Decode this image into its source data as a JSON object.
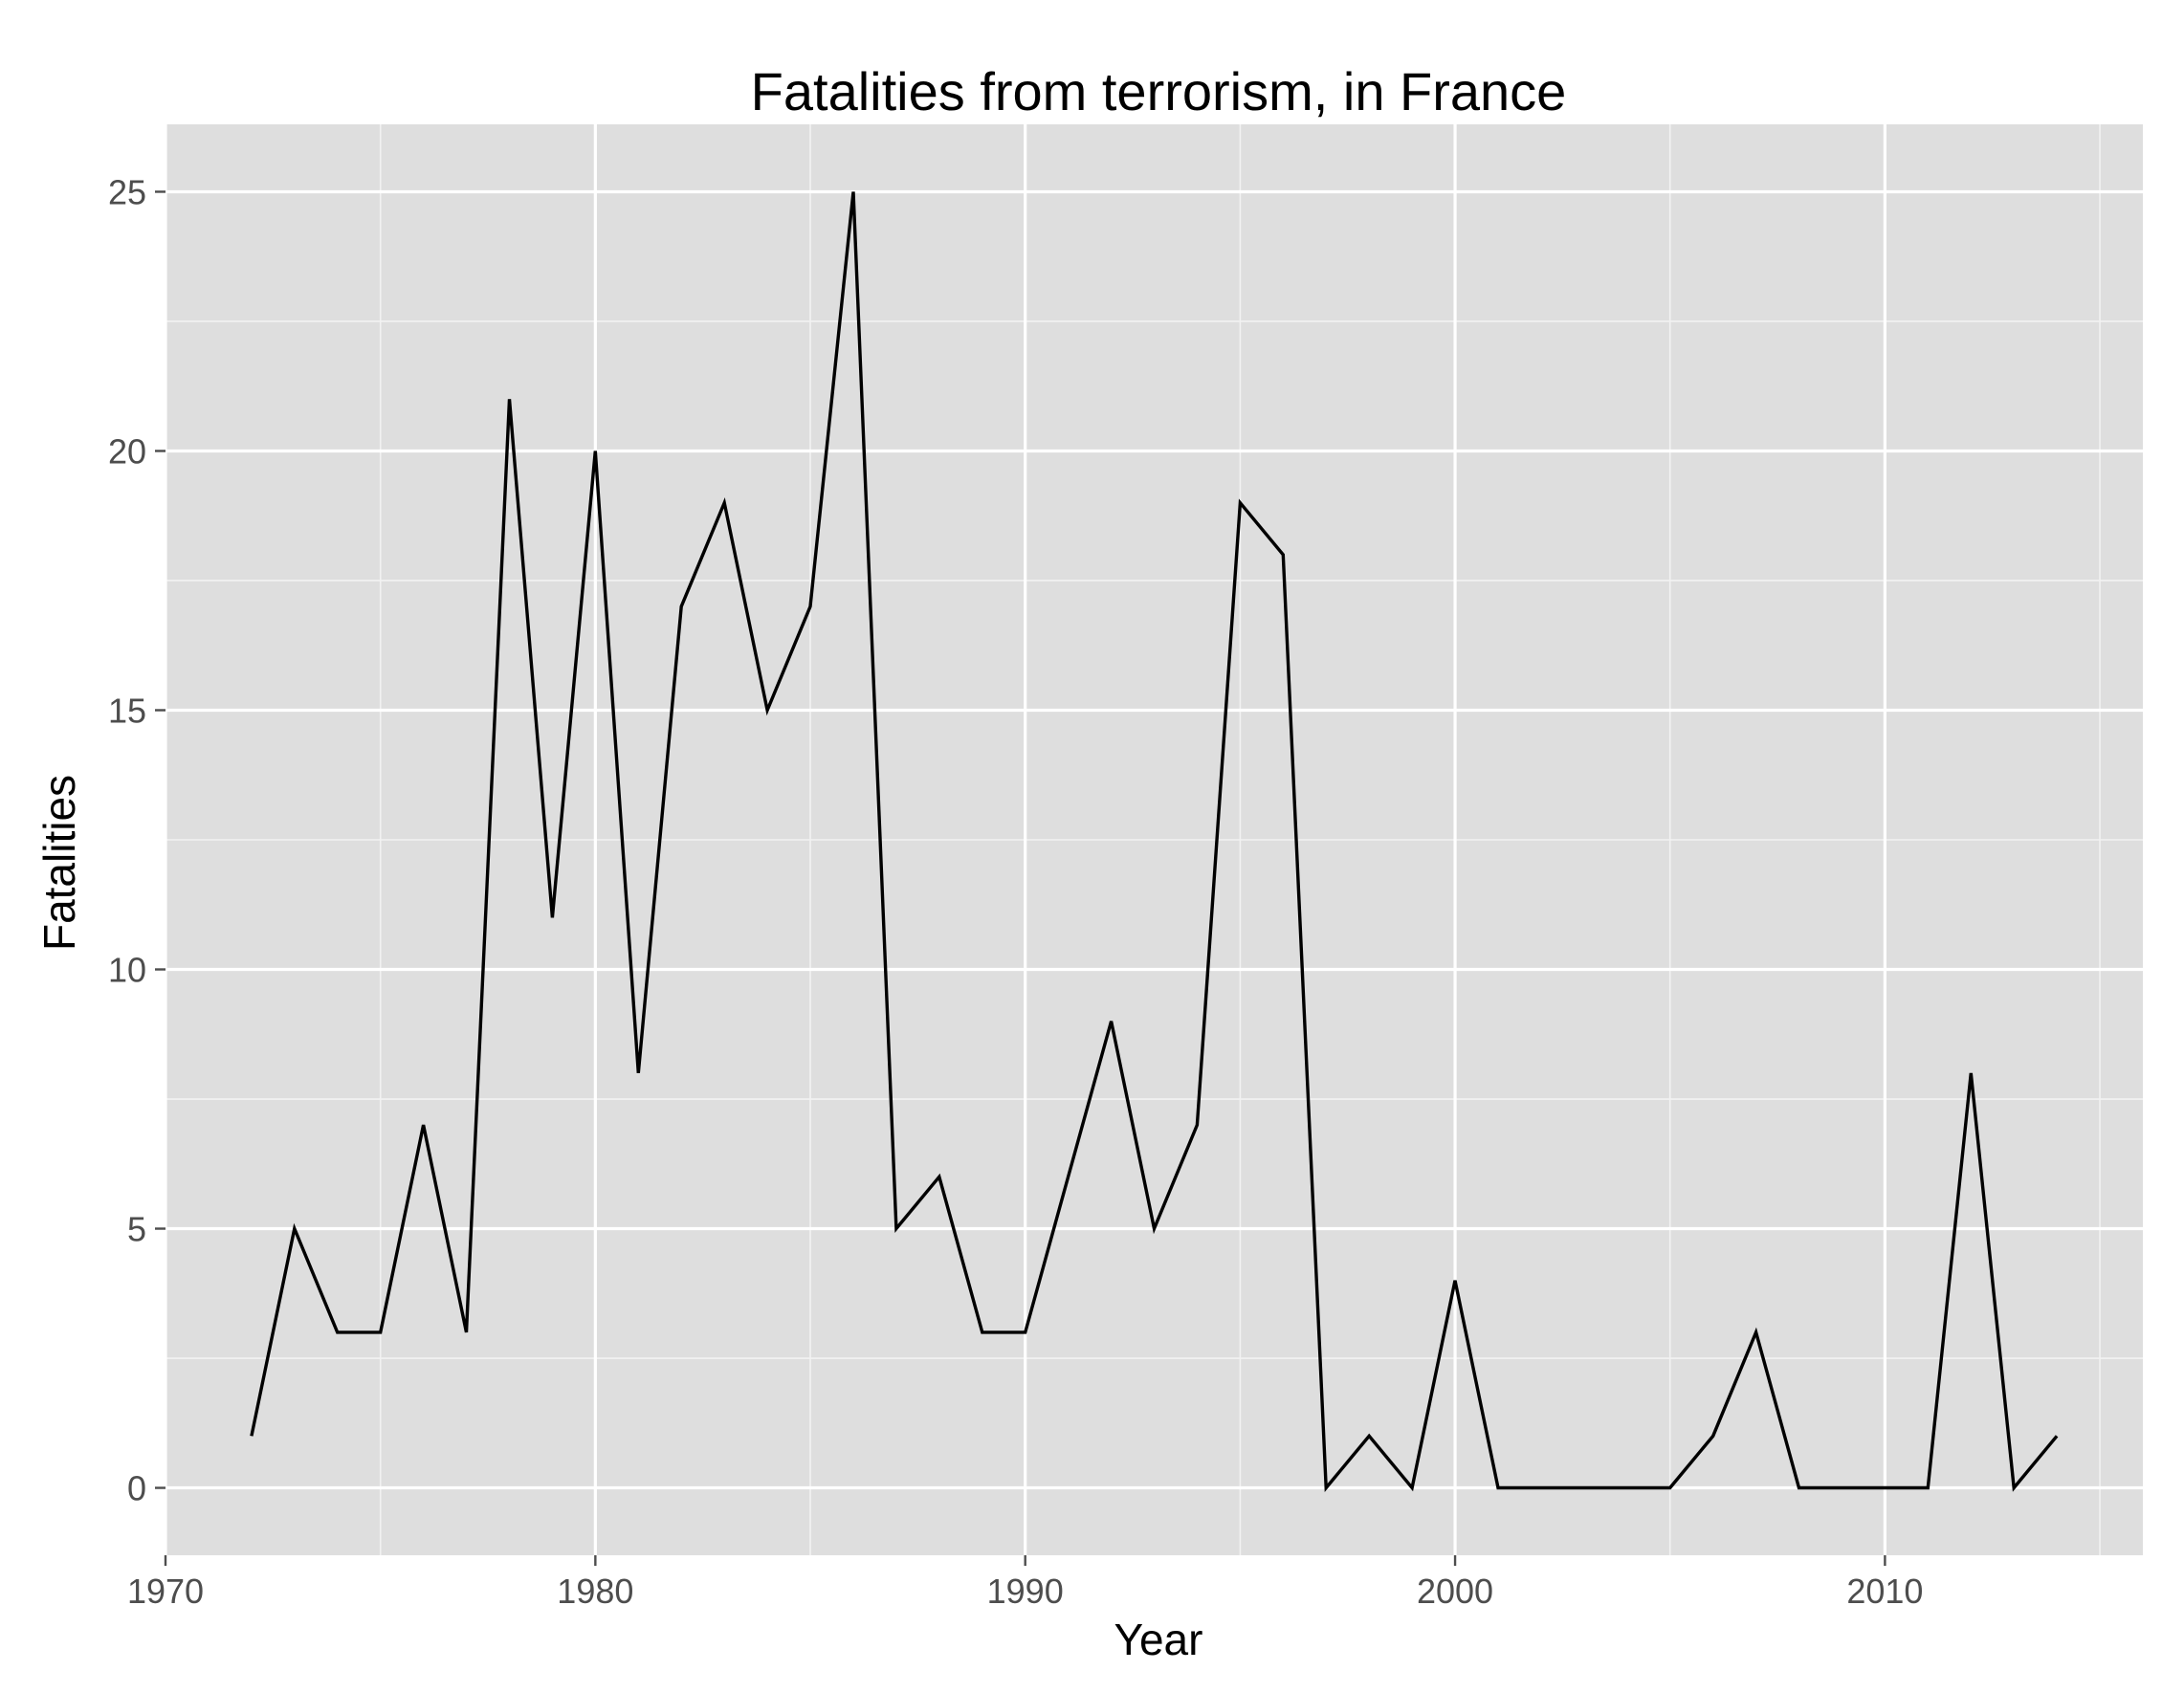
{
  "chart_data": {
    "type": "line",
    "title": "Fatalities from terrorism, in France",
    "xlabel": "Year",
    "ylabel": "Fatalities",
    "xlim": [
      1970,
      2016
    ],
    "ylim": [
      -1.3,
      26.3
    ],
    "x_ticks": [
      1970,
      1980,
      1990,
      2000,
      2010
    ],
    "y_ticks": [
      0,
      5,
      10,
      15,
      20,
      25
    ],
    "x_minor": [
      1975,
      1985,
      1995,
      2005,
      2015
    ],
    "y_minor": [
      2.5,
      7.5,
      12.5,
      17.5,
      22.5
    ],
    "grid": true,
    "legend": "none",
    "colors": {
      "panel": "#dedede",
      "line": "#000000",
      "grid": "#ffffff",
      "tick_text": "#4d4d4d"
    },
    "x": [
      1972,
      1973,
      1974,
      1975,
      1976,
      1977,
      1978,
      1979,
      1980,
      1981,
      1982,
      1983,
      1984,
      1985,
      1986,
      1987,
      1988,
      1989,
      1990,
      1991,
      1992,
      1993,
      1994,
      1995,
      1996,
      1997,
      1998,
      1999,
      2000,
      2001,
      2002,
      2003,
      2004,
      2005,
      2006,
      2007,
      2008,
      2009,
      2010,
      2011,
      2012,
      2013,
      2014
    ],
    "series": [
      {
        "values": [
          1,
          5,
          3,
          3,
          7,
          3,
          21,
          11,
          20,
          8,
          17,
          19,
          15,
          17,
          25,
          5,
          6,
          3,
          3,
          6,
          9,
          5,
          7,
          19,
          18,
          0,
          1,
          0,
          4,
          0,
          0,
          0,
          0,
          0,
          1,
          3,
          0,
          0,
          0,
          0,
          8,
          0,
          1
        ]
      }
    ]
  }
}
